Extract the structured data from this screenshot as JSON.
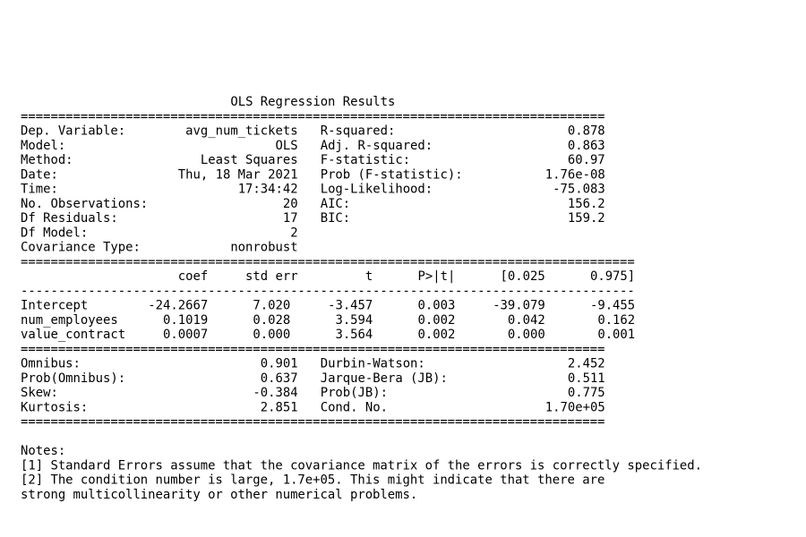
{
  "title": "OLS Regression Results",
  "rule_double_short": "==============================================================================",
  "rule_double_long": "==================================================================================",
  "rule_single_long": "----------------------------------------------------------------------------------",
  "summary_left": [
    [
      "Dep. Variable:",
      "avg_num_tickets"
    ],
    [
      "Model:",
      "OLS"
    ],
    [
      "Method:",
      "Least Squares"
    ],
    [
      "Date:",
      "Thu, 18 Mar 2021"
    ],
    [
      "Time:",
      "17:34:42"
    ],
    [
      "No. Observations:",
      "20"
    ],
    [
      "Df Residuals:",
      "17"
    ],
    [
      "Df Model:",
      "2"
    ],
    [
      "Covariance Type:",
      "nonrobust"
    ]
  ],
  "summary_right": [
    [
      "R-squared:",
      "0.878"
    ],
    [
      "Adj. R-squared:",
      "0.863"
    ],
    [
      "F-statistic:",
      "60.97"
    ],
    [
      "Prob (F-statistic):",
      "1.76e-08"
    ],
    [
      "Log-Likelihood:",
      "-75.083"
    ],
    [
      "AIC:",
      "156.2"
    ],
    [
      "BIC:",
      "159.2"
    ]
  ],
  "coef_table": {
    "columns": [
      "coef",
      "std err",
      "t",
      "P>|t|",
      "[0.025",
      "0.975]"
    ],
    "rows": [
      [
        "Intercept",
        "-24.2667",
        "7.020",
        "-3.457",
        "0.003",
        "-39.079",
        "-9.455"
      ],
      [
        "num_employees",
        "0.1019",
        "0.028",
        "3.594",
        "0.002",
        "0.042",
        "0.162"
      ],
      [
        "value_contract",
        "0.0007",
        "0.000",
        "3.564",
        "0.002",
        "0.000",
        "0.001"
      ]
    ]
  },
  "diagnostics_left": [
    [
      "Omnibus:",
      "0.901"
    ],
    [
      "Prob(Omnibus):",
      "0.637"
    ],
    [
      "Skew:",
      "-0.384"
    ],
    [
      "Kurtosis:",
      "2.851"
    ]
  ],
  "diagnostics_right": [
    [
      "Durbin-Watson:",
      "2.452"
    ],
    [
      "Jarque-Bera (JB):",
      "0.511"
    ],
    [
      "Prob(JB):",
      "0.775"
    ],
    [
      "Cond. No.",
      "1.70e+05"
    ]
  ],
  "notes": {
    "heading": "Notes:",
    "lines": [
      "[1] Standard Errors assume that the covariance matrix of the errors is correctly specified.",
      "[2] The condition number is large, 1.7e+05. This might indicate that there are",
      "strong multicollinearity or other numerical problems."
    ]
  }
}
